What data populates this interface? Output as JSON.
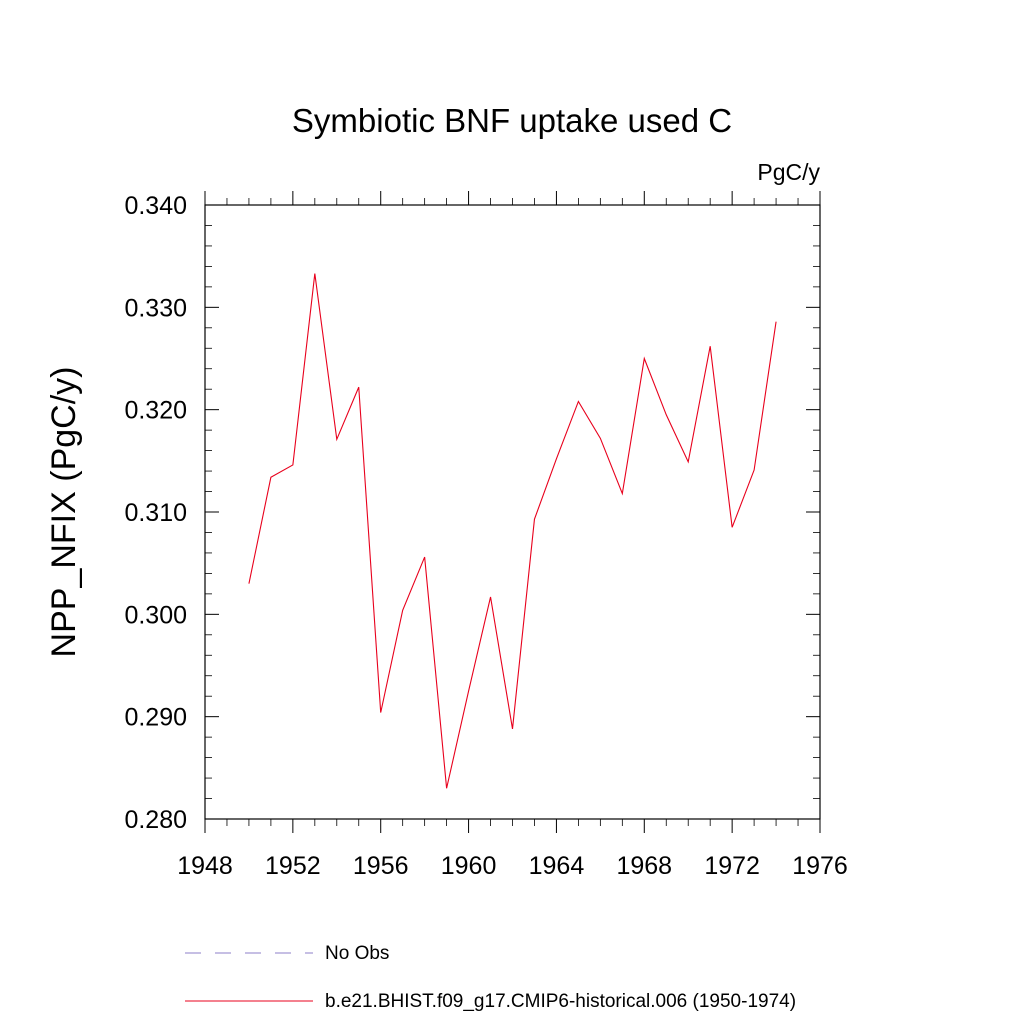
{
  "chart_data": {
    "type": "line",
    "title": "Symbiotic BNF uptake used C",
    "units_label": "PgC/y",
    "xlabel": "",
    "ylabel": "NPP_NFIX  (PgC/y)",
    "xlim": [
      1948,
      1976
    ],
    "ylim": [
      0.28,
      0.34
    ],
    "xticks": [
      1948,
      1952,
      1956,
      1960,
      1964,
      1968,
      1972,
      1976
    ],
    "xtick_labels": [
      "1948",
      "1952",
      "1956",
      "1960",
      "1964",
      "1968",
      "1972",
      "1976"
    ],
    "yticks": [
      0.28,
      0.29,
      0.3,
      0.31,
      0.32,
      0.33,
      0.34
    ],
    "ytick_labels": [
      "0.280",
      "0.290",
      "0.300",
      "0.310",
      "0.320",
      "0.330",
      "0.340"
    ],
    "grid": false,
    "legend_position": "bottom",
    "series": [
      {
        "name": "b.e21.BHIST.f09_g17.CMIP6-historical.006 (1950-1974)",
        "color": "#e8001c",
        "dash": "solid",
        "x": [
          1950,
          1951,
          1952,
          1953,
          1954,
          1955,
          1956,
          1957,
          1958,
          1959,
          1960,
          1961,
          1962,
          1963,
          1964,
          1965,
          1966,
          1967,
          1968,
          1969,
          1970,
          1971,
          1972,
          1973,
          1974
        ],
        "y": [
          0.303,
          0.3134,
          0.3146,
          0.3333,
          0.3171,
          0.3222,
          0.2904,
          0.3004,
          0.3056,
          0.283,
          0.2925,
          0.3017,
          0.2888,
          0.3093,
          0.3152,
          0.3208,
          0.3172,
          0.3118,
          0.325,
          0.3195,
          0.3149,
          0.3262,
          0.3085,
          0.3141,
          0.3286
        ]
      },
      {
        "name": "No Obs",
        "color": "#8c7fc8",
        "dash": "dashed",
        "x": [],
        "y": []
      }
    ]
  }
}
